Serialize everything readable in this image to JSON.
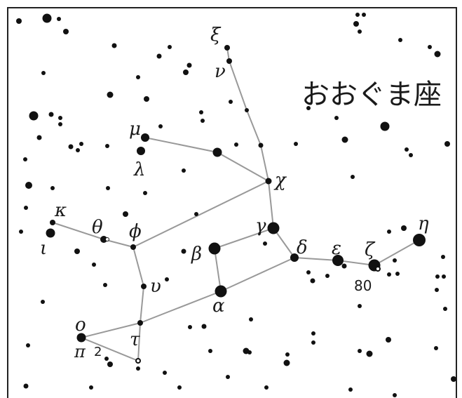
{
  "title": "おおぐま座",
  "colors": {
    "line": "#999999",
    "star": "#111111",
    "frame": "#222222"
  },
  "labels": {
    "xi": "ξ",
    "nu": "ν",
    "mu": "μ",
    "lambda": "λ",
    "chi": "χ",
    "kappa": "κ",
    "iota": "ι",
    "theta": "θ",
    "phi": "ϕ",
    "gamma": "γ",
    "beta": "β",
    "delta": "δ",
    "epsilon": "ε",
    "zeta": "ζ",
    "eta": "η",
    "upsilon": "υ",
    "alpha": "α",
    "omicron": "ο",
    "tau": "τ",
    "pi": "π",
    "two": "2",
    "eighty": "80"
  }
}
